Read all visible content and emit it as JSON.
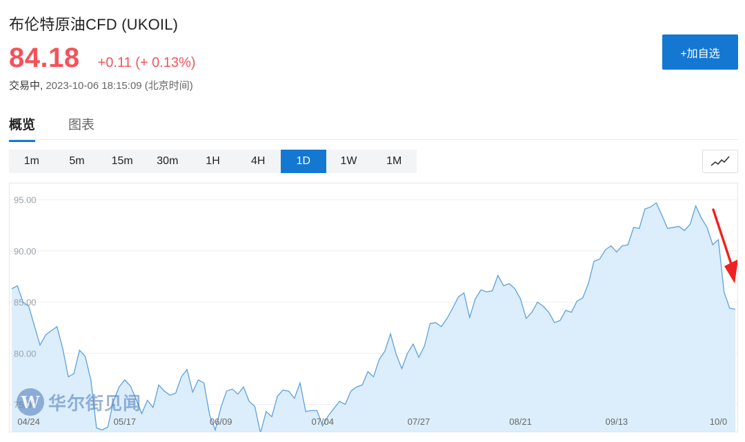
{
  "header": {
    "title": "布伦特原油CFD  (UKOIL)",
    "price": "84.18",
    "change": "+0.11 (+ 0.13%)",
    "status": "交易中,",
    "timestamp": " 2023-10-06 18:15:09 (北京时间)",
    "add_button": "+加自选"
  },
  "tabs": [
    {
      "label": "概览",
      "active": true
    },
    {
      "label": "图表",
      "active": false
    }
  ],
  "intervals": [
    {
      "label": "1m",
      "active": false
    },
    {
      "label": "5m",
      "active": false
    },
    {
      "label": "15m",
      "active": false
    },
    {
      "label": "30m",
      "active": false
    },
    {
      "label": "1H",
      "active": false
    },
    {
      "label": "4H",
      "active": false
    },
    {
      "label": "1D",
      "active": true
    },
    {
      "label": "1W",
      "active": false
    },
    {
      "label": "1M",
      "active": false
    }
  ],
  "chart_type_icon": "line-chart-icon",
  "watermark": {
    "logo": "W",
    "text": "华尔街见闻"
  },
  "colors": {
    "accent": "#1478d2",
    "up": "#f4525a",
    "line": "#5aa0e0",
    "fill": "#dceefb",
    "arrow": "#ee2222"
  },
  "chart_data": {
    "type": "area",
    "yticks": [
      "95.00",
      "90.00",
      "85.00",
      "80.00",
      "75.00"
    ],
    "ylim": [
      72.2,
      96.6
    ],
    "xticks": [
      {
        "label": "04/24",
        "index": 3
      },
      {
        "label": "05/17",
        "index": 20
      },
      {
        "label": "06/09",
        "index": 37
      },
      {
        "label": "07/04",
        "index": 55
      },
      {
        "label": "07/27",
        "index": 72
      },
      {
        "label": "08/21",
        "index": 90
      },
      {
        "label": "09/13",
        "index": 107
      },
      {
        "label": "10/0",
        "index": 125
      }
    ],
    "values": [
      86.3,
      86.6,
      85.0,
      84.6,
      82.7,
      80.8,
      81.8,
      82.2,
      82.6,
      80.5,
      77.7,
      78.0,
      80.3,
      79.7,
      77.4,
      72.7,
      72.5,
      72.8,
      75.3,
      76.7,
      77.4,
      76.8,
      75.5,
      74.1,
      75.4,
      74.7,
      76.9,
      76.3,
      75.9,
      76.1,
      77.7,
      78.4,
      76.2,
      77.4,
      77.1,
      74.0,
      72.5,
      74.7,
      76.3,
      76.5,
      76.0,
      76.7,
      75.3,
      74.8,
      72.2,
      74.3,
      73.8,
      75.8,
      76.4,
      76.3,
      75.6,
      77.1,
      74.3,
      74.4,
      74.4,
      72.9,
      73.9,
      74.6,
      75.3,
      75.0,
      76.3,
      76.7,
      76.9,
      78.2,
      77.7,
      79.4,
      80.2,
      81.9,
      79.9,
      78.5,
      80.0,
      80.9,
      79.6,
      80.7,
      82.9,
      83.0,
      82.6,
      83.4,
      84.4,
      85.5,
      85.9,
      83.5,
      85.3,
      86.2,
      86.0,
      86.1,
      87.6,
      86.6,
      86.8,
      86.3,
      85.3,
      83.4,
      84.0,
      85.0,
      84.6,
      84.0,
      83.0,
      83.2,
      84.2,
      84.0,
      85.1,
      85.4,
      86.8,
      89.0,
      89.2,
      90.1,
      90.5,
      89.9,
      90.5,
      90.6,
      92.3,
      92.2,
      94.1,
      94.3,
      94.7,
      93.5,
      92.2,
      92.3,
      92.4,
      92.0,
      92.6,
      94.4,
      93.2,
      92.3,
      90.6,
      91.1,
      86.0,
      84.4,
      84.3
    ]
  }
}
